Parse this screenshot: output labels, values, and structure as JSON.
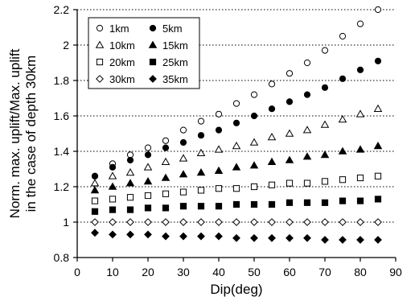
{
  "chart_data": {
    "type": "scatter",
    "xlabel": "Dip(deg)",
    "ylabel_lines": [
      "Norm. max. uplift/Max. uplift",
      "in the case of depth 30km"
    ],
    "xlim": [
      0,
      90
    ],
    "ylim": [
      0.8,
      2.2
    ],
    "xticks": [
      0,
      10,
      20,
      30,
      40,
      50,
      60,
      70,
      80,
      90
    ],
    "yticks": [
      0.8,
      1,
      1.2,
      1.4,
      1.6,
      1.8,
      2,
      2.2
    ],
    "ytick_labels": [
      "0.8",
      "1",
      "1.2",
      "1.4",
      "1.6",
      "1.8",
      "2",
      "2.2"
    ],
    "grid": "horizontal dotted",
    "legend_position": "top-left",
    "x": [
      5,
      10,
      15,
      20,
      25,
      30,
      35,
      40,
      45,
      50,
      55,
      60,
      65,
      70,
      75,
      80,
      85
    ],
    "series": [
      {
        "name": "1km",
        "marker": "circle-open",
        "values": [
          1.26,
          1.33,
          1.38,
          1.42,
          1.46,
          1.52,
          1.57,
          1.61,
          1.67,
          1.72,
          1.78,
          1.84,
          1.9,
          1.97,
          2.05,
          2.12,
          2.2
        ]
      },
      {
        "name": "5km",
        "marker": "circle-filled",
        "values": [
          1.26,
          1.31,
          1.35,
          1.38,
          1.42,
          1.45,
          1.49,
          1.52,
          1.56,
          1.6,
          1.64,
          1.68,
          1.72,
          1.76,
          1.81,
          1.86,
          1.91
        ]
      },
      {
        "name": "10km",
        "marker": "triangle-open",
        "values": [
          1.22,
          1.26,
          1.28,
          1.31,
          1.34,
          1.36,
          1.39,
          1.41,
          1.43,
          1.45,
          1.48,
          1.5,
          1.52,
          1.55,
          1.58,
          1.61,
          1.64
        ]
      },
      {
        "name": "15km",
        "marker": "triangle-filled",
        "values": [
          1.18,
          1.2,
          1.22,
          1.23,
          1.25,
          1.27,
          1.28,
          1.29,
          1.31,
          1.32,
          1.34,
          1.35,
          1.37,
          1.38,
          1.4,
          1.41,
          1.43
        ]
      },
      {
        "name": "20km",
        "marker": "square-open",
        "values": [
          1.12,
          1.13,
          1.14,
          1.15,
          1.16,
          1.17,
          1.18,
          1.19,
          1.19,
          1.2,
          1.21,
          1.22,
          1.22,
          1.23,
          1.24,
          1.25,
          1.26
        ]
      },
      {
        "name": "25km",
        "marker": "square-filled",
        "values": [
          1.06,
          1.07,
          1.07,
          1.08,
          1.08,
          1.09,
          1.09,
          1.09,
          1.1,
          1.1,
          1.1,
          1.11,
          1.11,
          1.11,
          1.12,
          1.12,
          1.13
        ]
      },
      {
        "name": "30km",
        "marker": "diamond-open",
        "values": [
          1.0,
          1.0,
          1.0,
          1.0,
          1.0,
          1.0,
          1.0,
          1.0,
          1.0,
          1.0,
          1.0,
          1.0,
          1.0,
          1.0,
          1.0,
          1.0,
          1.0
        ]
      },
      {
        "name": "35km",
        "marker": "diamond-filled",
        "values": [
          0.94,
          0.93,
          0.93,
          0.93,
          0.92,
          0.92,
          0.92,
          0.92,
          0.91,
          0.91,
          0.91,
          0.91,
          0.91,
          0.9,
          0.9,
          0.9,
          0.9
        ]
      }
    ]
  }
}
